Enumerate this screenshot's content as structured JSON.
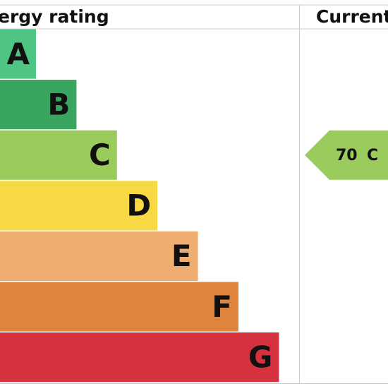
{
  "header": {
    "rating_title": "ergy rating",
    "current_title": "Current"
  },
  "bands": [
    {
      "letter": "A",
      "color": "#4fc585"
    },
    {
      "letter": "B",
      "color": "#3aa55f"
    },
    {
      "letter": "C",
      "color": "#9bcb5c"
    },
    {
      "letter": "D",
      "color": "#f6d944"
    },
    {
      "letter": "E",
      "color": "#efad70"
    },
    {
      "letter": "F",
      "color": "#e0843b"
    },
    {
      "letter": "G",
      "color": "#d5313e"
    }
  ],
  "current": {
    "value": 70,
    "band": "C",
    "color": "#9bcb5c"
  }
}
